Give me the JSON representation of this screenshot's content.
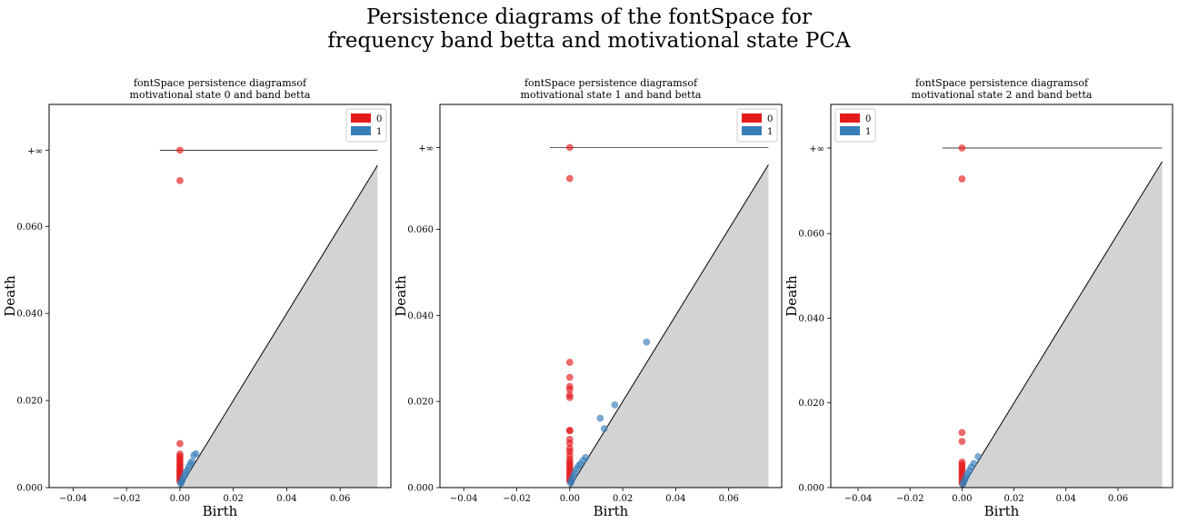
{
  "figure": {
    "title_line1": "Persistence diagrams of the fontSpace for",
    "title_line2": "frequency band betta and motivational state PCA",
    "colors": {
      "h0": "#e41a1c",
      "h1": "#377eb8",
      "diag_fill": "#d3d3d3",
      "line": "#000000"
    }
  },
  "chart_data": [
    {
      "type": "scatter",
      "title_line1": "fontSpace persistence diagramsof",
      "title_line2": "motivational state 0 and band betta",
      "xlabel": "Birth",
      "ylabel": "Death",
      "xlim": [
        -0.049,
        0.079
      ],
      "ylim": [
        0,
        0.088
      ],
      "inf_value": 0.0775,
      "xticks": [
        -0.04,
        -0.02,
        0.0,
        0.02,
        0.04,
        0.06
      ],
      "xtick_labels": [
        "−0.04",
        "−0.02",
        "0.00",
        "0.02",
        "0.04",
        "0.06"
      ],
      "yticks": [
        0.0,
        0.02,
        0.04,
        0.06
      ],
      "ytick_labels": [
        "0.000",
        "0.020",
        "0.040",
        "0.060"
      ],
      "inf_label": "+∞",
      "inf_line_x": [
        -0.0075,
        0.074
      ],
      "diag_end": 0.074,
      "legend_position": "top-right",
      "legend": [
        "0",
        "1"
      ],
      "series": [
        {
          "name": "0",
          "color": "#e41a1c",
          "points": [
            [
              0,
              0.0775
            ],
            [
              0,
              0.0705
            ],
            [
              0,
              0.0101
            ],
            [
              0,
              0.0077
            ],
            [
              0,
              0.0072
            ],
            [
              0,
              0.0068
            ],
            [
              0,
              0.0063
            ],
            [
              0,
              0.0058
            ],
            [
              0,
              0.0054
            ],
            [
              0,
              0.005
            ],
            [
              0,
              0.0046
            ],
            [
              0,
              0.0042
            ],
            [
              0,
              0.0038
            ],
            [
              0,
              0.0034
            ],
            [
              0,
              0.003
            ],
            [
              0,
              0.0026
            ],
            [
              0,
              0.0022
            ],
            [
              0,
              0.0018
            ],
            [
              0,
              0.0014
            ]
          ]
        },
        {
          "name": "1",
          "color": "#377eb8",
          "points": [
            [
              0.006,
              0.0078
            ],
            [
              0.0052,
              0.0074
            ],
            [
              0.0045,
              0.006
            ],
            [
              0.004,
              0.0055
            ],
            [
              0.0033,
              0.0048
            ],
            [
              0.0028,
              0.004
            ],
            [
              0.0022,
              0.0035
            ],
            [
              0.0018,
              0.0028
            ],
            [
              0.0012,
              0.0022
            ],
            [
              0.0008,
              0.0016
            ],
            [
              0.0005,
              0.0012
            ],
            [
              0.0003,
              0.0009
            ]
          ]
        }
      ]
    },
    {
      "type": "scatter",
      "title_line1": "fontSpace persistence diagramsof",
      "title_line2": "motivational state 1 and band betta",
      "xlabel": "Birth",
      "ylabel": "Death",
      "xlim": [
        -0.049,
        0.08
      ],
      "ylim": [
        0,
        0.089
      ],
      "inf_value": 0.079,
      "xticks": [
        -0.04,
        -0.02,
        0.0,
        0.02,
        0.04,
        0.06
      ],
      "xtick_labels": [
        "−0.04",
        "−0.02",
        "0.00",
        "0.02",
        "0.04",
        "0.06"
      ],
      "yticks": [
        0.0,
        0.02,
        0.04,
        0.06
      ],
      "ytick_labels": [
        "0.000",
        "0.020",
        "0.040",
        "0.060"
      ],
      "inf_label": "+∞",
      "inf_line_x": [
        -0.0075,
        0.075
      ],
      "diag_end": 0.075,
      "legend_position": "top-right",
      "legend": [
        "0",
        "1"
      ],
      "series": [
        {
          "name": "0",
          "color": "#e41a1c",
          "points": [
            [
              0,
              0.079
            ],
            [
              0,
              0.0718
            ],
            [
              0,
              0.0291
            ],
            [
              0,
              0.0256
            ],
            [
              0,
              0.0235
            ],
            [
              0,
              0.0228
            ],
            [
              0,
              0.0215
            ],
            [
              0,
              0.0209
            ],
            [
              0,
              0.0133
            ],
            [
              0,
              0.0132
            ],
            [
              0,
              0.0112
            ],
            [
              0,
              0.0103
            ],
            [
              0,
              0.0091
            ],
            [
              0,
              0.0084
            ],
            [
              0,
              0.0075
            ],
            [
              0,
              0.0066
            ],
            [
              0,
              0.006
            ],
            [
              0,
              0.0055
            ],
            [
              0,
              0.005
            ],
            [
              0,
              0.0045
            ],
            [
              0,
              0.004
            ],
            [
              0,
              0.0035
            ],
            [
              0,
              0.003
            ],
            [
              0,
              0.0025
            ],
            [
              0,
              0.002
            ],
            [
              0,
              0.0015
            ]
          ]
        },
        {
          "name": "1",
          "color": "#377eb8",
          "points": [
            [
              0.029,
              0.0338
            ],
            [
              0.017,
              0.0192
            ],
            [
              0.0115,
              0.0161
            ],
            [
              0.013,
              0.0137
            ],
            [
              0.006,
              0.007
            ],
            [
              0.005,
              0.0063
            ],
            [
              0.004,
              0.0055
            ],
            [
              0.0033,
              0.005
            ],
            [
              0.0025,
              0.0043
            ],
            [
              0.002,
              0.0035
            ],
            [
              0.0015,
              0.0028
            ],
            [
              0.001,
              0.0022
            ],
            [
              0.0006,
              0.0015
            ],
            [
              0.0003,
              0.001
            ]
          ]
        }
      ]
    },
    {
      "type": "scatter",
      "title_line1": "fontSpace persistence diagramsof",
      "title_line2": "motivational state 2 and band betta",
      "xlabel": "Birth",
      "ylabel": "Death",
      "xlim": [
        -0.0505,
        0.081
      ],
      "ylim": [
        0,
        0.0905
      ],
      "inf_value": 0.0802,
      "xticks": [
        -0.04,
        -0.02,
        0.0,
        0.02,
        0.04,
        0.06
      ],
      "xtick_labels": [
        "−0.04",
        "−0.02",
        "0.00",
        "0.02",
        "0.04",
        "0.06"
      ],
      "yticks": [
        0.0,
        0.02,
        0.04,
        0.06
      ],
      "ytick_labels": [
        "0.000",
        "0.020",
        "0.040",
        "0.060"
      ],
      "inf_label": "+∞",
      "inf_line_x": [
        -0.0075,
        0.077
      ],
      "diag_end": 0.077,
      "legend_position": "top-left",
      "legend": [
        "0",
        "1"
      ],
      "series": [
        {
          "name": "0",
          "color": "#e41a1c",
          "points": [
            [
              0,
              0.0802
            ],
            [
              0,
              0.0729
            ],
            [
              0,
              0.013
            ],
            [
              0,
              0.0109
            ],
            [
              0,
              0.006
            ],
            [
              0,
              0.0055
            ],
            [
              0,
              0.005
            ],
            [
              0,
              0.0045
            ],
            [
              0,
              0.004
            ],
            [
              0,
              0.0035
            ],
            [
              0,
              0.003
            ],
            [
              0,
              0.0025
            ],
            [
              0,
              0.002
            ],
            [
              0,
              0.0015
            ],
            [
              0,
              0.001
            ]
          ]
        },
        {
          "name": "1",
          "color": "#377eb8",
          "points": [
            [
              0.0062,
              0.0073
            ],
            [
              0.0045,
              0.0057
            ],
            [
              0.0035,
              0.0048
            ],
            [
              0.0028,
              0.004
            ],
            [
              0.002,
              0.0032
            ],
            [
              0.0015,
              0.0025
            ],
            [
              0.001,
              0.0018
            ],
            [
              0.0006,
              0.0012
            ],
            [
              0.0003,
              0.0008
            ]
          ]
        }
      ]
    }
  ]
}
